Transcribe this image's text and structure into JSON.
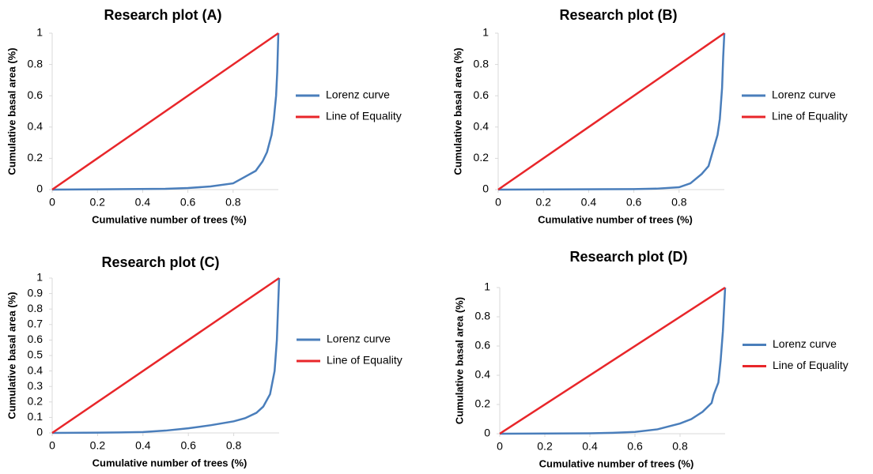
{
  "chart_data": [
    {
      "type": "line",
      "title": "Research plot (A)",
      "xlabel": "Cumulative number of trees (%)",
      "ylabel": "Cumulative basal area (%)",
      "xlim": [
        0,
        1
      ],
      "ylim": [
        0,
        1
      ],
      "xticks": [
        0,
        0.2,
        0.4,
        0.6,
        0.8
      ],
      "yticks": [
        0,
        0.2,
        0.4,
        0.6,
        0.8,
        1
      ],
      "legend": "right",
      "series": [
        {
          "name": "Lorenz curve",
          "color": "#4a7ebb",
          "x": [
            0,
            0.5,
            0.6,
            0.7,
            0.8,
            0.85,
            0.9,
            0.93,
            0.95,
            0.97,
            0.98,
            0.99,
            0.995,
            1
          ],
          "values": [
            0,
            0.005,
            0.01,
            0.02,
            0.04,
            0.08,
            0.12,
            0.18,
            0.24,
            0.35,
            0.45,
            0.6,
            0.75,
            1
          ]
        },
        {
          "name": "Line of Equality",
          "color": "#e8262a",
          "x": [
            0,
            1
          ],
          "values": [
            0,
            1
          ]
        }
      ]
    },
    {
      "type": "line",
      "title": "Research plot (B)",
      "xlabel": "Cumulative number of trees (%)",
      "ylabel": "Cumulative basal area (%)",
      "xlim": [
        0,
        1
      ],
      "ylim": [
        0,
        1
      ],
      "xticks": [
        0,
        0.2,
        0.4,
        0.6,
        0.8
      ],
      "yticks": [
        0,
        0.2,
        0.4,
        0.6,
        0.8,
        1
      ],
      "legend": "right",
      "series": [
        {
          "name": "Lorenz curve",
          "color": "#4a7ebb",
          "x": [
            0,
            0.6,
            0.7,
            0.8,
            0.85,
            0.9,
            0.93,
            0.95,
            0.97,
            0.98,
            0.99,
            0.995,
            1
          ],
          "values": [
            0,
            0.003,
            0.006,
            0.015,
            0.04,
            0.1,
            0.15,
            0.25,
            0.35,
            0.45,
            0.65,
            0.85,
            1
          ]
        },
        {
          "name": "Line of Equality",
          "color": "#e8262a",
          "x": [
            0,
            1
          ],
          "values": [
            0,
            1
          ]
        }
      ]
    },
    {
      "type": "line",
      "title": "Research plot (C)",
      "xlabel": "Cumulative number of trees (%)",
      "ylabel": "Cumulative basal area (%)",
      "xlim": [
        0,
        1
      ],
      "ylim": [
        0,
        1
      ],
      "xticks": [
        0,
        0.2,
        0.4,
        0.6,
        0.8
      ],
      "yticks": [
        0,
        0.1,
        0.2,
        0.3,
        0.4,
        0.5,
        0.6,
        0.7,
        0.8,
        0.9,
        1
      ],
      "legend": "right",
      "series": [
        {
          "name": "Lorenz curve",
          "color": "#4a7ebb",
          "x": [
            0,
            0.3,
            0.4,
            0.5,
            0.6,
            0.7,
            0.8,
            0.85,
            0.9,
            0.93,
            0.96,
            0.98,
            0.99,
            1
          ],
          "values": [
            0,
            0.003,
            0.006,
            0.015,
            0.03,
            0.05,
            0.075,
            0.095,
            0.13,
            0.17,
            0.25,
            0.4,
            0.6,
            1
          ]
        },
        {
          "name": "Line of Equality",
          "color": "#e8262a",
          "x": [
            0,
            1
          ],
          "values": [
            0,
            1
          ]
        }
      ]
    },
    {
      "type": "line",
      "title": "Research plot (D)",
      "xlabel": "Cumulative number of trees (%)",
      "ylabel": "Cumulative basal area (%)",
      "xlim": [
        0,
        1
      ],
      "ylim": [
        0,
        1
      ],
      "xticks": [
        0,
        0.2,
        0.4,
        0.6,
        0.8
      ],
      "yticks": [
        0,
        0.2,
        0.4,
        0.6,
        0.8,
        1
      ],
      "legend": "right",
      "series": [
        {
          "name": "Lorenz curve",
          "color": "#4a7ebb",
          "x": [
            0,
            0.4,
            0.5,
            0.6,
            0.7,
            0.8,
            0.85,
            0.9,
            0.94,
            0.95,
            0.97,
            0.98,
            0.99,
            1
          ],
          "values": [
            0,
            0.003,
            0.006,
            0.012,
            0.03,
            0.07,
            0.1,
            0.15,
            0.21,
            0.27,
            0.35,
            0.5,
            0.7,
            1
          ]
        },
        {
          "name": "Line of Equality",
          "color": "#e8262a",
          "x": [
            0,
            1
          ],
          "values": [
            0,
            1
          ]
        }
      ]
    }
  ]
}
